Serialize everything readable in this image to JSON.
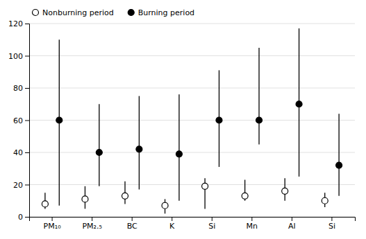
{
  "chart_data": {
    "type": "scatter",
    "categories": [
      "PM₁₀",
      "PM₂.₅",
      "BC",
      "K",
      "Si",
      "Mn",
      "Al",
      "Si"
    ],
    "series": [
      {
        "name": "Nonburning period",
        "color": "black",
        "marker": "circle-open",
        "values": [
          8,
          11,
          13,
          7,
          19,
          13,
          16,
          10
        ],
        "yerr_low": [
          3,
          6,
          5,
          5,
          14,
          3,
          6,
          4
        ],
        "yerr_high": [
          7,
          8,
          9,
          4,
          5,
          10,
          8,
          5
        ]
      },
      {
        "name": "Burning period",
        "color": "black",
        "marker": "circle",
        "values": [
          60,
          40,
          42,
          39,
          60,
          60,
          70,
          32
        ],
        "yerr_low": [
          53,
          21,
          25,
          29,
          29,
          15,
          45,
          19
        ],
        "yerr_high": [
          50,
          30,
          33,
          37,
          31,
          45,
          47,
          32
        ]
      }
    ],
    "ylim": [
      0,
      120
    ],
    "yticks": [
      0,
      20,
      40,
      60,
      80,
      100,
      120
    ],
    "grid": true,
    "legend": "upper left"
  }
}
